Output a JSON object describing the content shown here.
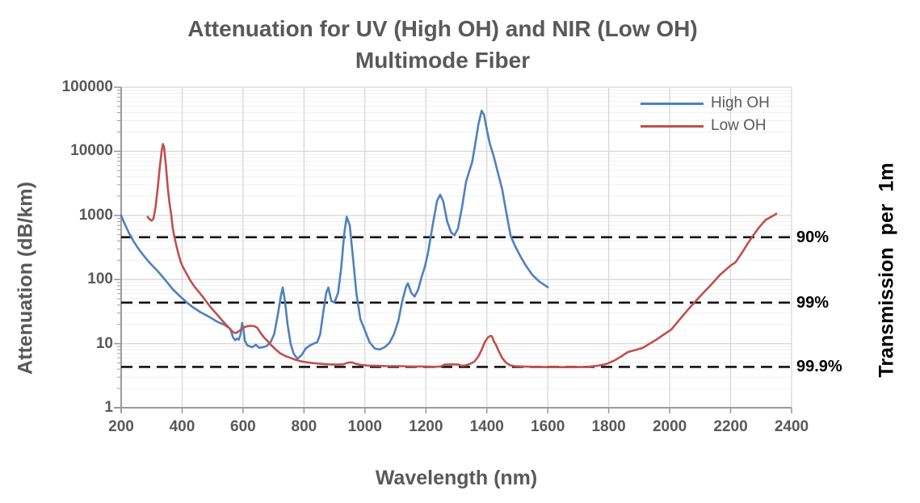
{
  "chart_data": {
    "type": "line",
    "title_line1": "Attenuation for UV (High OH) and NIR (Low OH)",
    "title_line2": "Multimode Fiber",
    "xlabel": "Wavelength (nm)",
    "ylabel": "Attenuation (dB/km)",
    "ylabel_right": "Transmission  per  1m",
    "x_scale": "linear",
    "y_scale": "log",
    "xlim": [
      200,
      2400
    ],
    "ylim": [
      1,
      100000
    ],
    "x_ticks": [
      200,
      400,
      600,
      800,
      1000,
      1200,
      1400,
      1600,
      1800,
      2000,
      2200,
      2400
    ],
    "y_ticks": [
      "1",
      "10",
      "100",
      "1000",
      "10000",
      "100000"
    ],
    "grid": true,
    "legend_position": "top-right-inside",
    "colors": {
      "grid_major": "#d8d8d8",
      "grid_minor": "#f0f0f0",
      "axis": "#9b9b9b",
      "reference": "#111111"
    },
    "reference_lines": [
      {
        "label": "90%",
        "attenuation_db_per_km": 457.6
      },
      {
        "label": "99%",
        "attenuation_db_per_km": 43.65
      },
      {
        "label": "99.9%",
        "attenuation_db_per_km": 4.343
      }
    ],
    "series": [
      {
        "name": "High OH",
        "color": "#4F81BD",
        "points": [
          [
            200,
            1000
          ],
          [
            212,
            730
          ],
          [
            225,
            540
          ],
          [
            240,
            400
          ],
          [
            255,
            310
          ],
          [
            270,
            250
          ],
          [
            288,
            195
          ],
          [
            305,
            160
          ],
          [
            320,
            135
          ],
          [
            345,
            98
          ],
          [
            370,
            70
          ],
          [
            400,
            51
          ],
          [
            418,
            43
          ],
          [
            435,
            37
          ],
          [
            460,
            31
          ],
          [
            490,
            26
          ],
          [
            515,
            22
          ],
          [
            540,
            19.5
          ],
          [
            558,
            17
          ],
          [
            567,
            12.5
          ],
          [
            574,
            11.3
          ],
          [
            580,
            12
          ],
          [
            586,
            11.5
          ],
          [
            592,
            14
          ],
          [
            597,
            21
          ],
          [
            601,
            17
          ],
          [
            606,
            11
          ],
          [
            614,
            9.4
          ],
          [
            622,
            9.1
          ],
          [
            630,
            8.8
          ],
          [
            642,
            9.6
          ],
          [
            653,
            8.6
          ],
          [
            665,
            8.8
          ],
          [
            678,
            9.2
          ],
          [
            690,
            10.5
          ],
          [
            702,
            14
          ],
          [
            714,
            28
          ],
          [
            724,
            55
          ],
          [
            730,
            75
          ],
          [
            737,
            48
          ],
          [
            746,
            20
          ],
          [
            756,
            10
          ],
          [
            766,
            7
          ],
          [
            778,
            5.8
          ],
          [
            792,
            6.6
          ],
          [
            806,
            8.4
          ],
          [
            820,
            9.4
          ],
          [
            835,
            10.2
          ],
          [
            843,
            10.4
          ],
          [
            853,
            14
          ],
          [
            863,
            30
          ],
          [
            873,
            62
          ],
          [
            880,
            75
          ],
          [
            890,
            46
          ],
          [
            900,
            44
          ],
          [
            912,
            62
          ],
          [
            922,
            150
          ],
          [
            932,
            520
          ],
          [
            940,
            950
          ],
          [
            950,
            700
          ],
          [
            960,
            240
          ],
          [
            972,
            60
          ],
          [
            985,
            24
          ],
          [
            1000,
            16
          ],
          [
            1015,
            10.5
          ],
          [
            1032,
            8.4
          ],
          [
            1048,
            8.1
          ],
          [
            1065,
            8.8
          ],
          [
            1080,
            10.2
          ],
          [
            1095,
            14
          ],
          [
            1110,
            23
          ],
          [
            1122,
            45
          ],
          [
            1135,
            78
          ],
          [
            1141,
            87
          ],
          [
            1152,
            62
          ],
          [
            1163,
            54
          ],
          [
            1175,
            70
          ],
          [
            1186,
            110
          ],
          [
            1197,
            160
          ],
          [
            1207,
            260
          ],
          [
            1222,
            700
          ],
          [
            1237,
            1700
          ],
          [
            1247,
            2100
          ],
          [
            1257,
            1650
          ],
          [
            1270,
            800
          ],
          [
            1283,
            540
          ],
          [
            1294,
            490
          ],
          [
            1305,
            620
          ],
          [
            1318,
            1300
          ],
          [
            1332,
            3400
          ],
          [
            1342,
            4800
          ],
          [
            1352,
            6800
          ],
          [
            1362,
            13000
          ],
          [
            1372,
            26000
          ],
          [
            1383,
            43000
          ],
          [
            1391,
            37000
          ],
          [
            1400,
            22000
          ],
          [
            1410,
            13000
          ],
          [
            1422,
            8600
          ],
          [
            1436,
            4700
          ],
          [
            1450,
            2600
          ],
          [
            1464,
            1100
          ],
          [
            1478,
            480
          ],
          [
            1492,
            340
          ],
          [
            1508,
            240
          ],
          [
            1526,
            170
          ],
          [
            1548,
            120
          ],
          [
            1572,
            93
          ],
          [
            1600,
            76
          ]
        ]
      },
      {
        "name": "Low OH",
        "color": "#C0504D",
        "points": [
          [
            287,
            950
          ],
          [
            293,
            870
          ],
          [
            300,
            830
          ],
          [
            306,
            890
          ],
          [
            313,
            1350
          ],
          [
            320,
            2700
          ],
          [
            327,
            5800
          ],
          [
            333,
            10200
          ],
          [
            337,
            13000
          ],
          [
            341,
            11500
          ],
          [
            347,
            5800
          ],
          [
            353,
            2700
          ],
          [
            359,
            1500
          ],
          [
            364,
            1050
          ],
          [
            369,
            640
          ],
          [
            374,
            480
          ],
          [
            381,
            340
          ],
          [
            388,
            250
          ],
          [
            396,
            185
          ],
          [
            404,
            152
          ],
          [
            416,
            120
          ],
          [
            428,
            95
          ],
          [
            441,
            77
          ],
          [
            455,
            64
          ],
          [
            470,
            52
          ],
          [
            483,
            43
          ],
          [
            498,
            35
          ],
          [
            513,
            29
          ],
          [
            528,
            24
          ],
          [
            543,
            20
          ],
          [
            557,
            17
          ],
          [
            568,
            15
          ],
          [
            576,
            14.6
          ],
          [
            588,
            15.8
          ],
          [
            600,
            17.6
          ],
          [
            612,
            18.6
          ],
          [
            624,
            19
          ],
          [
            637,
            18.7
          ],
          [
            647,
            17.6
          ],
          [
            657,
            14.8
          ],
          [
            668,
            12.6
          ],
          [
            680,
            11
          ],
          [
            694,
            9.3
          ],
          [
            708,
            8
          ],
          [
            723,
            7
          ],
          [
            739,
            6.4
          ],
          [
            755,
            6
          ],
          [
            772,
            5.6
          ],
          [
            790,
            5.3
          ],
          [
            810,
            5.1
          ],
          [
            832,
            4.95
          ],
          [
            855,
            4.85
          ],
          [
            880,
            4.75
          ],
          [
            902,
            4.7
          ],
          [
            928,
            4.75
          ],
          [
            944,
            5.05
          ],
          [
            957,
            5.1
          ],
          [
            970,
            4.85
          ],
          [
            988,
            4.65
          ],
          [
            1010,
            4.55
          ],
          [
            1040,
            4.5
          ],
          [
            1075,
            4.45
          ],
          [
            1115,
            4.45
          ],
          [
            1155,
            4.4
          ],
          [
            1195,
            4.4
          ],
          [
            1228,
            4.35
          ],
          [
            1248,
            4.4
          ],
          [
            1262,
            4.7
          ],
          [
            1285,
            4.75
          ],
          [
            1308,
            4.7
          ],
          [
            1318,
            4.5
          ],
          [
            1332,
            4.6
          ],
          [
            1348,
            4.9
          ],
          [
            1360,
            5.3
          ],
          [
            1372,
            6.3
          ],
          [
            1383,
            8
          ],
          [
            1393,
            10.5
          ],
          [
            1403,
            12.4
          ],
          [
            1411,
            13.2
          ],
          [
            1417,
            13
          ],
          [
            1423,
            10.8
          ],
          [
            1429,
            9.8
          ],
          [
            1438,
            7.8
          ],
          [
            1450,
            6
          ],
          [
            1462,
            5.1
          ],
          [
            1476,
            4.6
          ],
          [
            1492,
            4.45
          ],
          [
            1515,
            4.4
          ],
          [
            1550,
            4.35
          ],
          [
            1600,
            4.3
          ],
          [
            1650,
            4.3
          ],
          [
            1700,
            4.3
          ],
          [
            1732,
            4.35
          ],
          [
            1762,
            4.5
          ],
          [
            1792,
            4.8
          ],
          [
            1820,
            5.5
          ],
          [
            1845,
            6.5
          ],
          [
            1863,
            7.4
          ],
          [
            1890,
            8
          ],
          [
            1912,
            8.6
          ],
          [
            1932,
            9.8
          ],
          [
            1956,
            11.5
          ],
          [
            1980,
            13.8
          ],
          [
            2005,
            16.5
          ],
          [
            2030,
            23
          ],
          [
            2058,
            33
          ],
          [
            2085,
            46
          ],
          [
            2112,
            63
          ],
          [
            2138,
            85
          ],
          [
            2165,
            118
          ],
          [
            2200,
            165
          ],
          [
            2216,
            186
          ],
          [
            2236,
            255
          ],
          [
            2256,
            365
          ],
          [
            2272,
            470
          ],
          [
            2292,
            640
          ],
          [
            2315,
            850
          ],
          [
            2338,
            980
          ],
          [
            2350,
            1060
          ]
        ]
      }
    ]
  }
}
